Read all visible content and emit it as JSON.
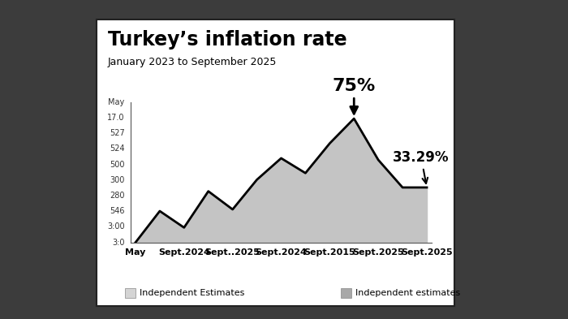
{
  "chart_data": {
    "type": "area",
    "title": "Turkey’s inflation rate",
    "subtitle": "January 2023 to September 2025",
    "categories": [
      "May",
      null,
      "Sept.2024",
      null,
      "Sept..2025",
      null,
      "Sept.2024",
      null,
      "Sept.2015",
      null,
      "Sept.2025",
      null,
      "Sept.2025"
    ],
    "values": [
      0,
      19,
      9,
      31,
      20,
      38,
      51,
      42,
      60,
      75,
      50,
      33.29,
      33.29
    ],
    "color": "#c4c4c4",
    "ylim": [
      0,
      85
    ],
    "tick_labels": "x",
    "y_axis_texts": [
      "May",
      "17.0",
      "527",
      "524",
      "500",
      "300",
      "280",
      "546",
      "3:00",
      "3:0"
    ],
    "annotations": [
      {
        "text": "75%",
        "value": 75
      },
      {
        "text": "33.29%",
        "value": 33.29
      }
    ],
    "legend_texts": [
      "Independent Estimates",
      "Independent estimates"
    ]
  }
}
